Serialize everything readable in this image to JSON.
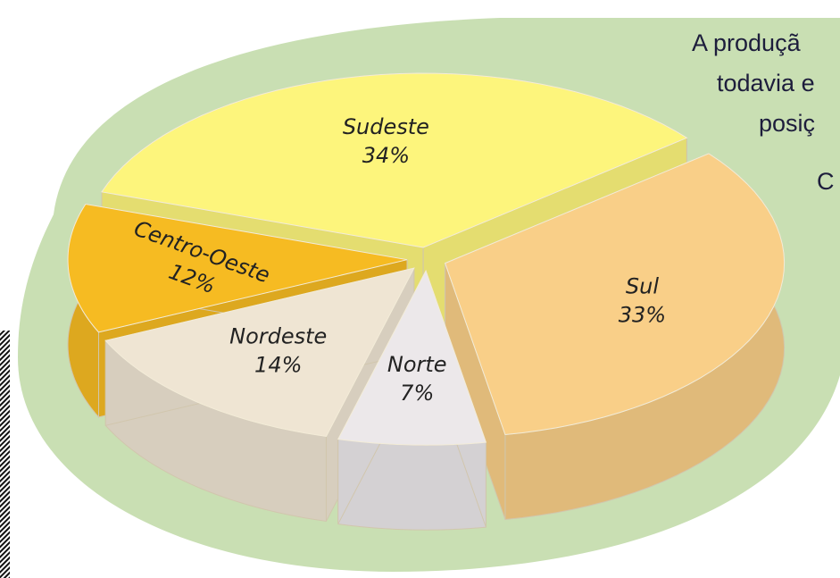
{
  "chart_data": {
    "type": "pie",
    "categories": [
      "Sudeste",
      "Sul",
      "Norte",
      "Nordeste",
      "Centro-Oeste"
    ],
    "values": [
      34,
      33,
      7,
      14,
      12
    ],
    "value_labels": [
      "34%",
      "33%",
      "7%",
      "14%",
      "12%"
    ],
    "colors": [
      "#fdf57c",
      "#f9cf88",
      "#ece8ea",
      "#efe5d3",
      "#f6bb22"
    ],
    "annotations": [
      "A produçã",
      "todavia e",
      "posiç",
      "C"
    ]
  }
}
